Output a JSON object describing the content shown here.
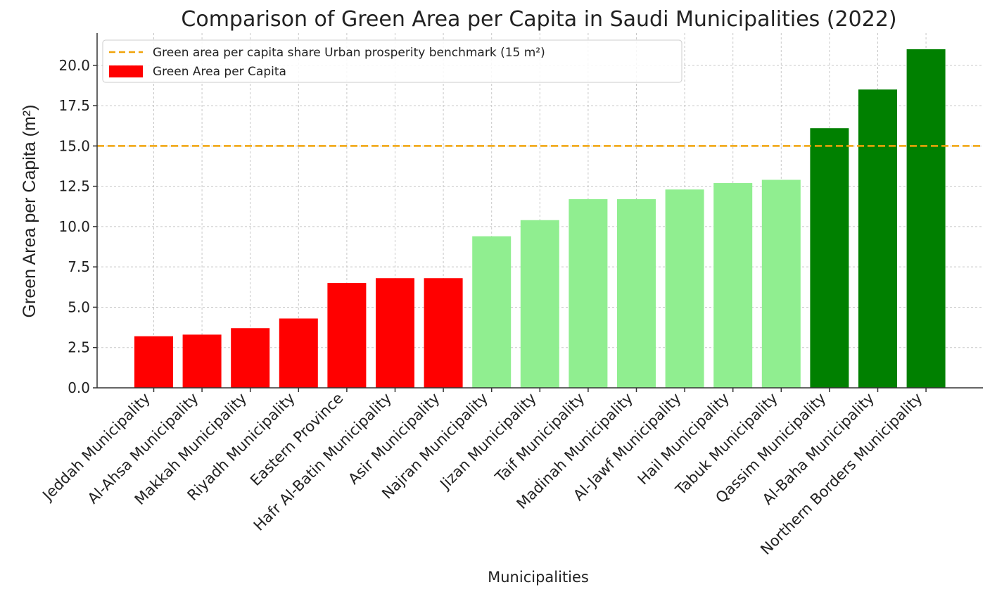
{
  "chart_data": {
    "type": "bar",
    "title": "Comparison of Green Area per Capita in Saudi Municipalities (2022)",
    "xlabel": "Municipalities",
    "ylabel": "Green Area per Capita (m²)",
    "ylim": [
      0,
      22
    ],
    "yticks": [
      "0.0",
      "2.5",
      "5.0",
      "7.5",
      "10.0",
      "12.5",
      "15.0",
      "17.5",
      "20.0"
    ],
    "grid": true,
    "legend_position": "top-left",
    "categories": [
      "Jeddah Municipality",
      "Al-Ahsa Municipality",
      "Makkah Municipality",
      "Riyadh Municipality",
      "Eastern Province",
      "Hafr Al-Batin Municipality",
      "Asir Municipality",
      "Najran Municipality",
      "Jizan Municipality",
      "Taif Municipality",
      "Madinah Municipality",
      "Al-Jawf Municipality",
      "Hail Municipality",
      "Tabuk Municipality",
      "Qassim Municipality",
      "Al-Baha Municipality",
      "Northern Borders Municipality"
    ],
    "values": [
      3.2,
      3.3,
      3.7,
      4.3,
      6.5,
      6.8,
      6.8,
      9.4,
      10.4,
      11.7,
      11.7,
      12.3,
      12.7,
      12.9,
      16.1,
      18.5,
      21.0
    ],
    "bar_colors": [
      "#ff0000",
      "#ff0000",
      "#ff0000",
      "#ff0000",
      "#ff0000",
      "#ff0000",
      "#ff0000",
      "#90ee90",
      "#90ee90",
      "#90ee90",
      "#90ee90",
      "#90ee90",
      "#90ee90",
      "#90ee90",
      "#008000",
      "#008000",
      "#008000"
    ],
    "benchmark": {
      "value": 15,
      "color": "#f0a30a",
      "label": "Green area per capita share Urban prosperity benchmark (15 m²)"
    },
    "legend": [
      {
        "label": "Green area per capita share Urban prosperity benchmark (15 m²)",
        "kind": "dashed-line",
        "color": "#f0a30a"
      },
      {
        "label": "Green Area per Capita",
        "kind": "patch",
        "color": "#ff0000"
      }
    ]
  }
}
